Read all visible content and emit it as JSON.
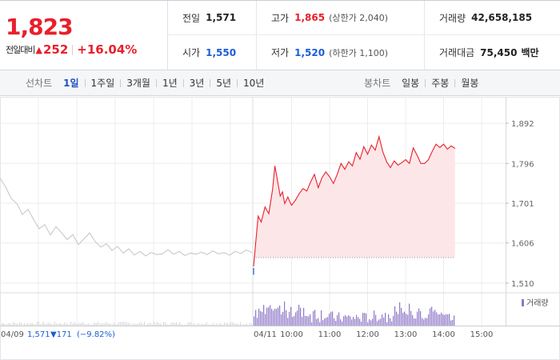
{
  "summary": {
    "price": "1,823",
    "diff_label": "전일대비",
    "diff_arrow": "▲",
    "diff_value": "252",
    "diff_rate": "+16.04%",
    "prev_close_label": "전일",
    "prev_close": "1,571",
    "open_label": "시가",
    "open": "1,550",
    "high_label": "고가",
    "high": "1,865",
    "upper_limit": "(상한가 2,040)",
    "low_label": "저가",
    "low": "1,520",
    "lower_limit": "(하한가 1,100)",
    "volume_label": "거래량",
    "volume": "42,658,185",
    "amount_label": "거래대금",
    "amount": "75,450",
    "amount_unit": "백만"
  },
  "tabs": {
    "line_title": "선차트",
    "line_items": [
      "1일",
      "1주일",
      "3개월",
      "1년",
      "3년",
      "5년",
      "10년"
    ],
    "line_active": 0,
    "candle_title": "봉차트",
    "candle_items": [
      "일봉",
      "주봉",
      "월봉"
    ]
  },
  "colors": {
    "up": "#e8202b",
    "down": "#1a5ed8",
    "prev_line": "#c4c4c4",
    "fill": "#fde6e8",
    "volume_bar": "#8f77c7",
    "volume_prev": "#d7d7d7",
    "grid": "#ececec"
  },
  "chart_data": {
    "type": "line",
    "ylim": [
      1485,
      1917
    ],
    "yticks": [
      1892,
      1796,
      1701,
      1606,
      1510
    ],
    "ytick_labels": [
      "1,892",
      "1,796",
      "1,701",
      "1,606",
      "1,510"
    ],
    "baseline": 1571,
    "prev_day": {
      "date_label": "04/09",
      "close_label": "1,571",
      "change_label": "▼171",
      "rate_label": "(−9.82%)",
      "points": [
        [
          0,
          1761
        ],
        [
          0.1,
          1740
        ],
        [
          0.2,
          1712
        ],
        [
          0.3,
          1700
        ],
        [
          0.4,
          1674
        ],
        [
          0.5,
          1686
        ],
        [
          0.6,
          1662
        ],
        [
          0.7,
          1640
        ],
        [
          0.8,
          1650
        ],
        [
          0.9,
          1625
        ],
        [
          1.0,
          1645
        ],
        [
          1.1,
          1630
        ],
        [
          1.2,
          1614
        ],
        [
          1.3,
          1626
        ],
        [
          1.4,
          1602
        ],
        [
          1.5,
          1616
        ],
        [
          1.6,
          1630
        ],
        [
          1.7,
          1609
        ],
        [
          1.8,
          1596
        ],
        [
          1.9,
          1604
        ],
        [
          2.0,
          1588
        ],
        [
          2.1,
          1598
        ],
        [
          2.2,
          1582
        ],
        [
          2.3,
          1592
        ],
        [
          2.4,
          1577
        ],
        [
          2.5,
          1586
        ],
        [
          2.6,
          1575
        ],
        [
          2.7,
          1583
        ],
        [
          2.8,
          1578
        ],
        [
          2.9,
          1580
        ],
        [
          3.0,
          1590
        ],
        [
          3.1,
          1579
        ],
        [
          3.2,
          1586
        ],
        [
          3.3,
          1576
        ],
        [
          3.4,
          1582
        ],
        [
          3.5,
          1579
        ],
        [
          3.6,
          1584
        ],
        [
          3.7,
          1578
        ],
        [
          3.8,
          1587
        ],
        [
          3.9,
          1580
        ],
        [
          4.0,
          1583
        ],
        [
          4.1,
          1577
        ],
        [
          4.2,
          1586
        ],
        [
          4.3,
          1581
        ],
        [
          4.4,
          1589
        ],
        [
          4.5,
          1583
        ]
      ]
    },
    "today": {
      "date_label": "04/11",
      "time_labels": [
        "10:00",
        "11:00",
        "12:00",
        "13:00",
        "14:00",
        "15:00"
      ],
      "time_positions": [
        1,
        2,
        3,
        4,
        5,
        6
      ],
      "points": [
        [
          0,
          1550
        ],
        [
          0.06,
          1612
        ],
        [
          0.12,
          1670
        ],
        [
          0.2,
          1656
        ],
        [
          0.3,
          1692
        ],
        [
          0.4,
          1676
        ],
        [
          0.5,
          1735
        ],
        [
          0.56,
          1790
        ],
        [
          0.62,
          1760
        ],
        [
          0.7,
          1718
        ],
        [
          0.76,
          1728
        ],
        [
          0.82,
          1700
        ],
        [
          0.9,
          1716
        ],
        [
          0.96,
          1703
        ],
        [
          1.0,
          1696
        ],
        [
          1.1,
          1708
        ],
        [
          1.2,
          1724
        ],
        [
          1.3,
          1736
        ],
        [
          1.4,
          1730
        ],
        [
          1.5,
          1752
        ],
        [
          1.6,
          1770
        ],
        [
          1.7,
          1738
        ],
        [
          1.8,
          1762
        ],
        [
          1.9,
          1776
        ],
        [
          2.0,
          1764
        ],
        [
          2.1,
          1748
        ],
        [
          2.2,
          1770
        ],
        [
          2.3,
          1796
        ],
        [
          2.4,
          1782
        ],
        [
          2.5,
          1800
        ],
        [
          2.6,
          1790
        ],
        [
          2.7,
          1822
        ],
        [
          2.8,
          1806
        ],
        [
          2.9,
          1836
        ],
        [
          3.0,
          1818
        ],
        [
          3.1,
          1840
        ],
        [
          3.2,
          1828
        ],
        [
          3.3,
          1860
        ],
        [
          3.4,
          1824
        ],
        [
          3.5,
          1800
        ],
        [
          3.6,
          1786
        ],
        [
          3.7,
          1802
        ],
        [
          3.8,
          1792
        ],
        [
          3.9,
          1798
        ],
        [
          4.0,
          1805
        ],
        [
          4.1,
          1796
        ],
        [
          4.2,
          1833
        ],
        [
          4.3,
          1816
        ],
        [
          4.4,
          1796
        ],
        [
          4.5,
          1796
        ],
        [
          4.6,
          1805
        ],
        [
          4.7,
          1825
        ],
        [
          4.8,
          1842
        ],
        [
          4.9,
          1834
        ],
        [
          5.0,
          1842
        ],
        [
          5.1,
          1830
        ],
        [
          5.2,
          1838
        ],
        [
          5.3,
          1832
        ]
      ]
    },
    "volume_label": "거래량"
  }
}
